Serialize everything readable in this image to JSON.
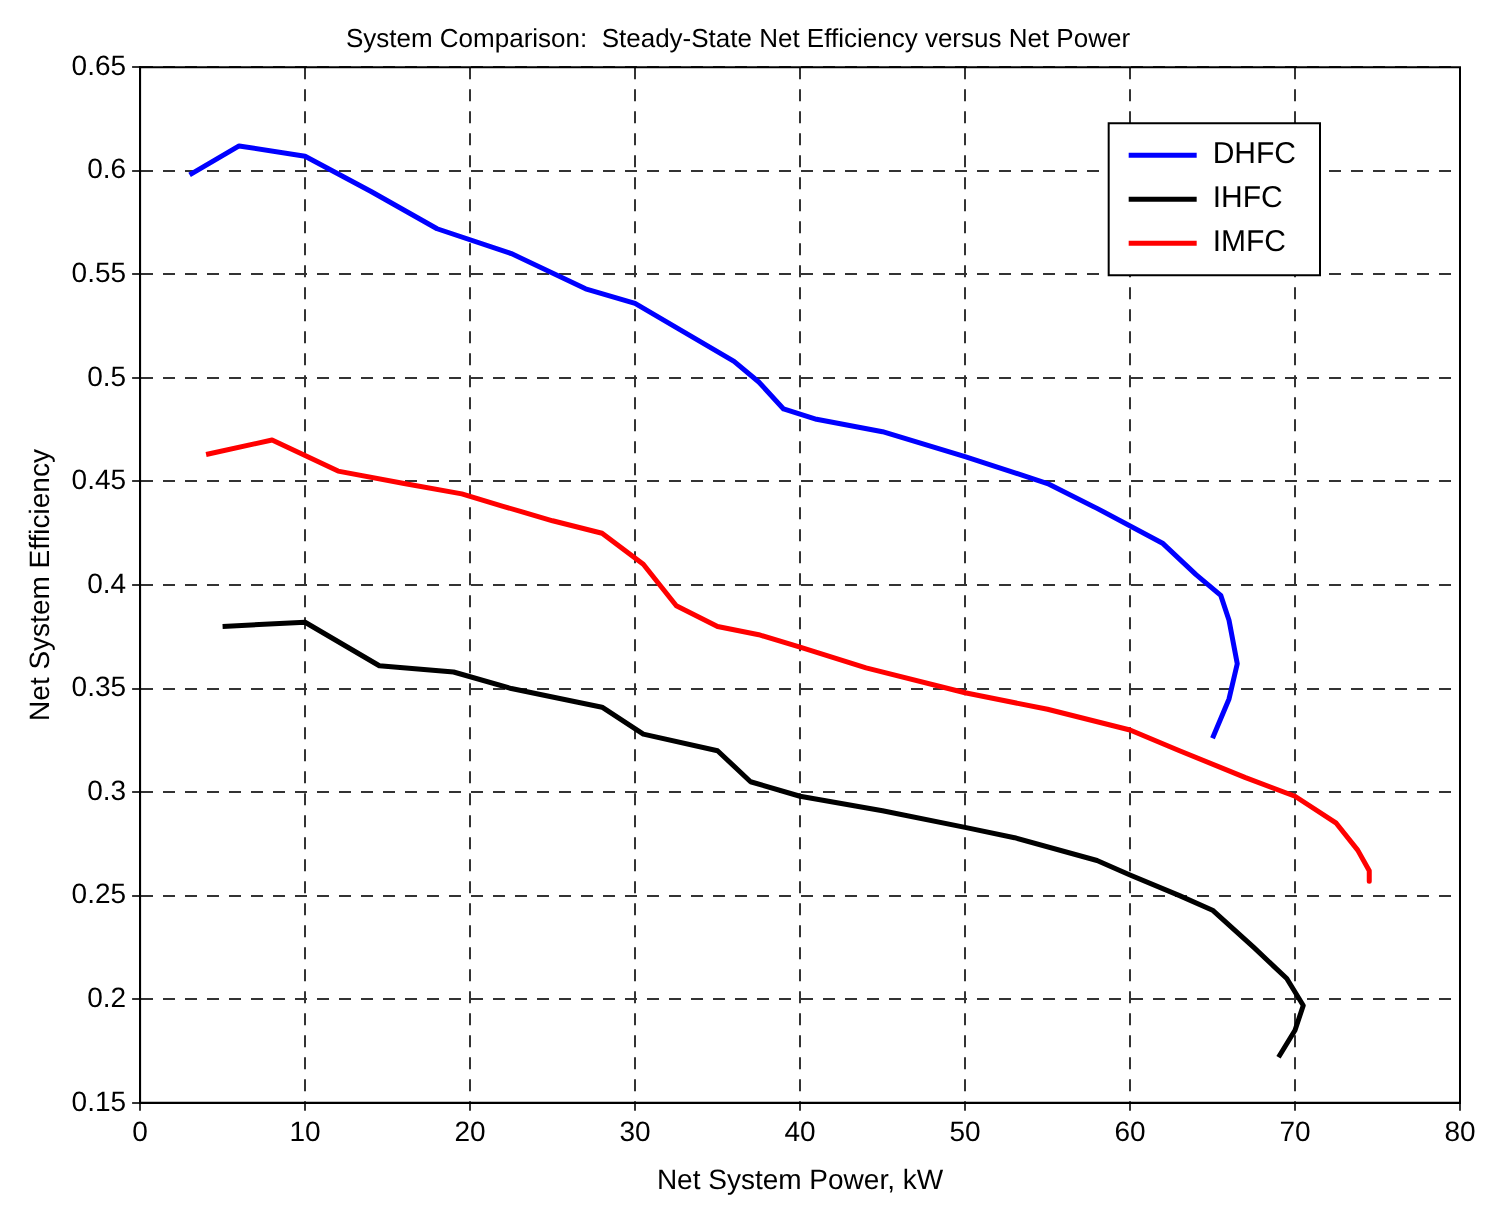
{
  "chart_data": {
    "type": "line",
    "title": "System Comparison:  Steady-State Net Efficiency versus Net Power",
    "xlabel": "Net System Power, kW",
    "ylabel": "Net System Efficiency",
    "xlim": [
      0,
      80
    ],
    "xticks": [
      0,
      10,
      20,
      30,
      40,
      50,
      60,
      70,
      80
    ],
    "ylim": [
      0.15,
      0.65
    ],
    "yticks": [
      0.15,
      0.2,
      0.25,
      0.3,
      0.35,
      0.4,
      0.45,
      0.5,
      0.55,
      0.6,
      0.65
    ],
    "grid": true,
    "legend": "top right",
    "line_style": "solid",
    "marker": "none",
    "series": [
      {
        "name": "DHFC",
        "color": "#0000ff",
        "x": [
          3,
          6,
          10,
          14,
          18,
          22.5,
          27,
          30,
          33,
          36,
          37.5,
          39,
          41,
          45,
          50,
          55,
          58,
          62,
          64,
          65.5,
          66,
          66.5,
          66,
          65
        ],
        "values": [
          0.598,
          0.612,
          0.607,
          0.59,
          0.572,
          0.56,
          0.543,
          0.536,
          0.522,
          0.508,
          0.498,
          0.485,
          0.48,
          0.474,
          0.462,
          0.449,
          0.437,
          0.42,
          0.405,
          0.395,
          0.383,
          0.362,
          0.345,
          0.326
        ]
      },
      {
        "name": "IHFC",
        "color": "#000000",
        "x": [
          5,
          10,
          14.5,
          19,
          22.5,
          28,
          30.5,
          35,
          37,
          40,
          45,
          50,
          53,
          58,
          60,
          63,
          65,
          67.5,
          69.5,
          70.5,
          70,
          69
        ],
        "values": [
          0.38,
          0.382,
          0.361,
          0.358,
          0.35,
          0.341,
          0.328,
          0.32,
          0.305,
          0.298,
          0.291,
          0.283,
          0.278,
          0.267,
          0.26,
          0.25,
          0.243,
          0.225,
          0.21,
          0.197,
          0.185,
          0.172
        ]
      },
      {
        "name": "IMFC",
        "color": "#ff0000",
        "x": [
          4,
          8,
          12,
          16,
          19.5,
          22,
          25,
          28,
          30.5,
          32.5,
          35,
          37.5,
          40,
          44,
          50,
          55,
          60,
          63,
          67,
          70,
          72.5,
          73.8,
          74.5,
          74.5
        ],
        "values": [
          0.463,
          0.47,
          0.455,
          0.449,
          0.444,
          0.438,
          0.431,
          0.425,
          0.41,
          0.39,
          0.38,
          0.376,
          0.37,
          0.36,
          0.348,
          0.34,
          0.33,
          0.32,
          0.307,
          0.298,
          0.285,
          0.272,
          0.262,
          0.257
        ]
      }
    ]
  }
}
